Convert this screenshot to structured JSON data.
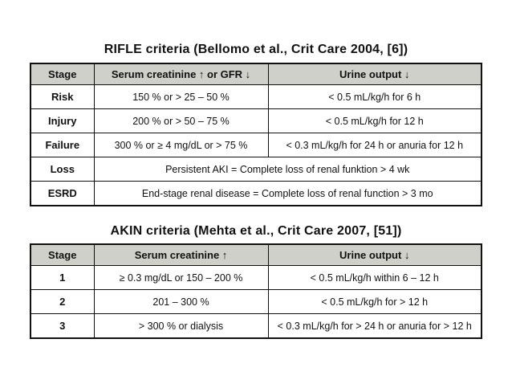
{
  "colors": {
    "page_bg": "#ffffff",
    "header_bg": "#d0d0ca",
    "border": "#111111",
    "text": "#111111"
  },
  "tables": [
    {
      "id": "rifle",
      "title": "RIFLE criteria (Bellomo et al., Crit Care 2004, [6])",
      "columns": [
        "Stage",
        "Serum creatinine ↑ or GFR ↓",
        "Urine output ↓"
      ],
      "rows": [
        {
          "stage": "Risk",
          "cells": [
            "150 % or > 25 – 50 %",
            "< 0.5 mL/kg/h for 6 h"
          ]
        },
        {
          "stage": "Injury",
          "cells": [
            "200 % or > 50 – 75 %",
            "< 0.5 mL/kg/h for 12 h"
          ]
        },
        {
          "stage": "Failure",
          "cells": [
            "300 % or ≥ 4 mg/dL or > 75 %",
            "< 0.3 mL/kg/h for 24 h or anuria for 12 h"
          ]
        },
        {
          "stage": "Loss",
          "cells": [
            "Persistent AKI = Complete loss of renal funktion > 4 wk"
          ]
        },
        {
          "stage": "ESRD",
          "cells": [
            "End-stage renal disease = Complete loss of renal function > 3 mo"
          ]
        }
      ]
    },
    {
      "id": "akin",
      "title": "AKIN criteria (Mehta et al., Crit Care 2007, [51])",
      "columns": [
        "Stage",
        "Serum creatinine ↑",
        "Urine output ↓"
      ],
      "rows": [
        {
          "stage": "1",
          "cells": [
            "≥ 0.3 mg/dL or 150 – 200 %",
            "< 0.5 mL/kg/h within 6 – 12 h"
          ]
        },
        {
          "stage": "2",
          "cells": [
            "201 – 300 %",
            "< 0.5 mL/kg/h for > 12 h"
          ]
        },
        {
          "stage": "3",
          "cells": [
            "> 300 % or dialysis",
            "< 0.3 mL/kg/h for > 24 h or anuria for > 12 h"
          ]
        }
      ]
    }
  ]
}
